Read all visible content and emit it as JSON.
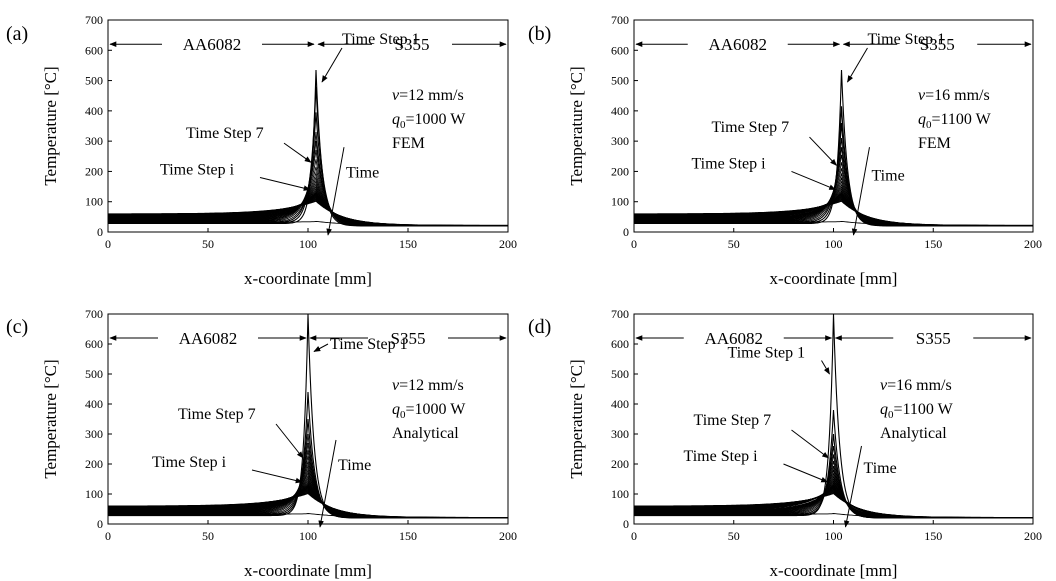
{
  "figure": {
    "xlabel": "x-coordinate [mm]",
    "ylabel": "Temperature [°C]",
    "left_region": "AA6082",
    "right_region": "S355",
    "time_arrow_label": "Time",
    "step1_label": "Time Step 1",
    "step7_label": "Time Step 7",
    "stepi_label": "Time Step i"
  },
  "chart_data": [
    {
      "type": "line",
      "panel": "(a)",
      "velocity": "=12 mm/s",
      "power": "=1000 W",
      "method": "FEM",
      "xlabel": "x-coordinate [mm]",
      "ylabel": "Temperature [°C]",
      "xlim": [
        0,
        200
      ],
      "ylim": [
        0,
        700
      ],
      "xticks": [
        0,
        50,
        100,
        150,
        200
      ],
      "yticks": [
        0,
        100,
        200,
        300,
        400,
        500,
        600,
        700
      ],
      "interface_x": 104,
      "peaks": [
        535,
        480,
        395,
        330,
        300,
        270,
        240,
        215,
        195,
        180,
        168,
        158,
        150,
        143,
        137,
        132
      ]
    },
    {
      "type": "line",
      "panel": "(b)",
      "velocity": "=16 mm/s",
      "power": "=1100 W",
      "method": "FEM",
      "xlabel": "x-coordinate [mm]",
      "ylabel": "Temperature [°C]",
      "xlim": [
        0,
        200
      ],
      "ylim": [
        0,
        700
      ],
      "xticks": [
        0,
        50,
        100,
        150,
        200
      ],
      "yticks": [
        0,
        100,
        200,
        300,
        400,
        500,
        600,
        700
      ],
      "interface_x": 104,
      "peaks": [
        535,
        415,
        360,
        310,
        280,
        255,
        230,
        210,
        192,
        178,
        166,
        156,
        148,
        141,
        135,
        130
      ]
    },
    {
      "type": "line",
      "panel": "(c)",
      "velocity": "=12 mm/s",
      "power": "=1000 W",
      "method": "Analytical",
      "xlabel": "x-coordinate [mm]",
      "ylabel": "Temperature [°C]",
      "xlim": [
        0,
        200
      ],
      "ylim": [
        0,
        700
      ],
      "xticks": [
        0,
        50,
        100,
        150,
        200
      ],
      "yticks": [
        0,
        100,
        200,
        300,
        400,
        500,
        600,
        700
      ],
      "interface_x": 100,
      "peaks": [
        700,
        440,
        350,
        300,
        270,
        245,
        225,
        208,
        193,
        180,
        170,
        160,
        152,
        145,
        139,
        134
      ]
    },
    {
      "type": "line",
      "panel": "(d)",
      "velocity": "=16 mm/s",
      "power": "=1100 W",
      "method": "Analytical",
      "xlabel": "x-coordinate [mm]",
      "ylabel": "Temperature [°C]",
      "xlim": [
        0,
        200
      ],
      "ylim": [
        0,
        700
      ],
      "xticks": [
        0,
        50,
        100,
        150,
        200
      ],
      "yticks": [
        0,
        100,
        200,
        300,
        400,
        500,
        600,
        700
      ],
      "interface_x": 100,
      "peaks": [
        700,
        380,
        300,
        260,
        232,
        210,
        193,
        180,
        168,
        158,
        150,
        143,
        137,
        132,
        128,
        124
      ]
    }
  ]
}
